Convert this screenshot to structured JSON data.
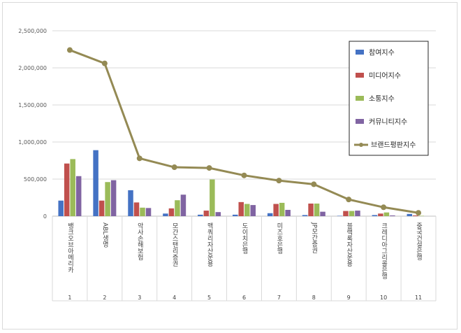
{
  "chart_data": {
    "type": "bar",
    "title": "",
    "xlabel": "",
    "ylabel": "",
    "ylim": [
      0,
      2500000
    ],
    "yticks": [
      "0",
      "500,000",
      "1,000,000",
      "1,500,000",
      "2,000,000",
      "2,500,000"
    ],
    "ytick_values": [
      0,
      500000,
      1000000,
      1500000,
      2000000,
      2500000
    ],
    "grid": true,
    "legend_position": "top-right",
    "categories": [
      "뱅크오브아메리카",
      "ABL생명",
      "악사손해보험",
      "모간스탠리증권",
      "맥쿼리자산운용",
      "도이치은행",
      "미즈호은행",
      "JP모간증권",
      "블랙록자산운용",
      "크레디아그리콜은행",
      "중국건설은행"
    ],
    "index_labels": [
      "1",
      "2",
      "3",
      "4",
      "5",
      "6",
      "7",
      "8",
      "9",
      "10",
      "11"
    ],
    "series": [
      {
        "name": "참여지수",
        "color": "#4472c4",
        "type": "bar",
        "values": [
          210000,
          890000,
          350000,
          35000,
          20000,
          20000,
          40000,
          15000,
          5000,
          15000,
          30000
        ]
      },
      {
        "name": "미디어지수",
        "color": "#c0504d",
        "type": "bar",
        "values": [
          710000,
          210000,
          185000,
          105000,
          75000,
          190000,
          165000,
          170000,
          70000,
          35000,
          10000
        ]
      },
      {
        "name": "소통지수",
        "color": "#9bbb59",
        "type": "bar",
        "values": [
          770000,
          460000,
          115000,
          215000,
          495000,
          165000,
          180000,
          170000,
          70000,
          50000,
          5000
        ]
      },
      {
        "name": "커뮤니티지수",
        "color": "#8064a2",
        "type": "bar",
        "values": [
          540000,
          485000,
          110000,
          290000,
          55000,
          150000,
          85000,
          60000,
          75000,
          10000,
          0
        ]
      },
      {
        "name": "브랜드평판지수",
        "color": "#948a54",
        "type": "line",
        "values": [
          2240000,
          2060000,
          780000,
          660000,
          650000,
          550000,
          480000,
          430000,
          225000,
          120000,
          45000
        ]
      }
    ]
  }
}
